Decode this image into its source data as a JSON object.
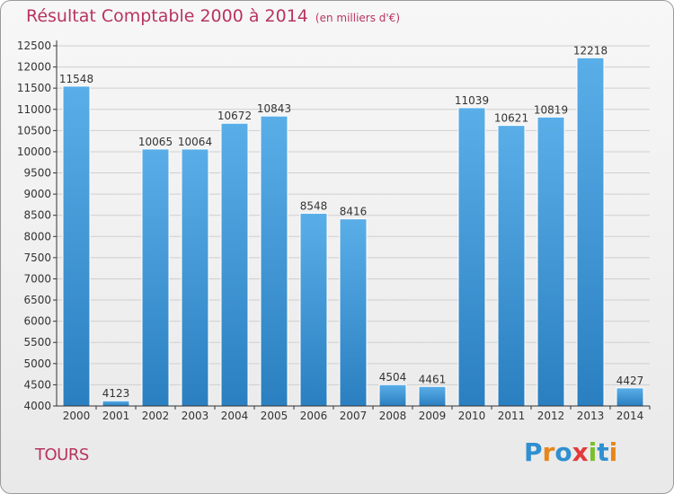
{
  "title": "Résultat Comptable 2000 à 2014",
  "unit_note": "(en milliers d'€)",
  "city": "TOURS",
  "logo_text": "Proxiti",
  "colors": {
    "title": "#b8345f",
    "bar_light": "#5aaee8",
    "bar_dark": "#2a7fc0",
    "grid": "#cfcfcf",
    "axis": "#333333"
  },
  "chart_data": {
    "type": "bar",
    "title": "Résultat Comptable 2000 à 2014",
    "xlabel": "",
    "ylabel": "",
    "categories": [
      "2000",
      "2001",
      "2002",
      "2003",
      "2004",
      "2005",
      "2006",
      "2007",
      "2008",
      "2009",
      "2010",
      "2011",
      "2012",
      "2013",
      "2014"
    ],
    "values": [
      11548,
      4123,
      10065,
      10064,
      10672,
      10843,
      8548,
      8416,
      4504,
      4461,
      11039,
      10621,
      10819,
      12218,
      4427
    ],
    "data_labels": [
      "11548",
      "4123",
      "10065",
      "10064",
      "10672",
      "10843",
      "8548",
      "8416",
      "4504",
      "4461",
      "11039",
      "10621",
      "10819",
      "12218",
      "4427"
    ],
    "ylim": [
      4000,
      12500
    ],
    "yticks": [
      "4000",
      "4500",
      "5000",
      "5500",
      "6000",
      "6500",
      "7000",
      "7500",
      "8000",
      "8500",
      "9000",
      "9500",
      "10000",
      "10500",
      "11000",
      "11500",
      "12000",
      "12500"
    ],
    "grid": true,
    "legend": "none"
  }
}
